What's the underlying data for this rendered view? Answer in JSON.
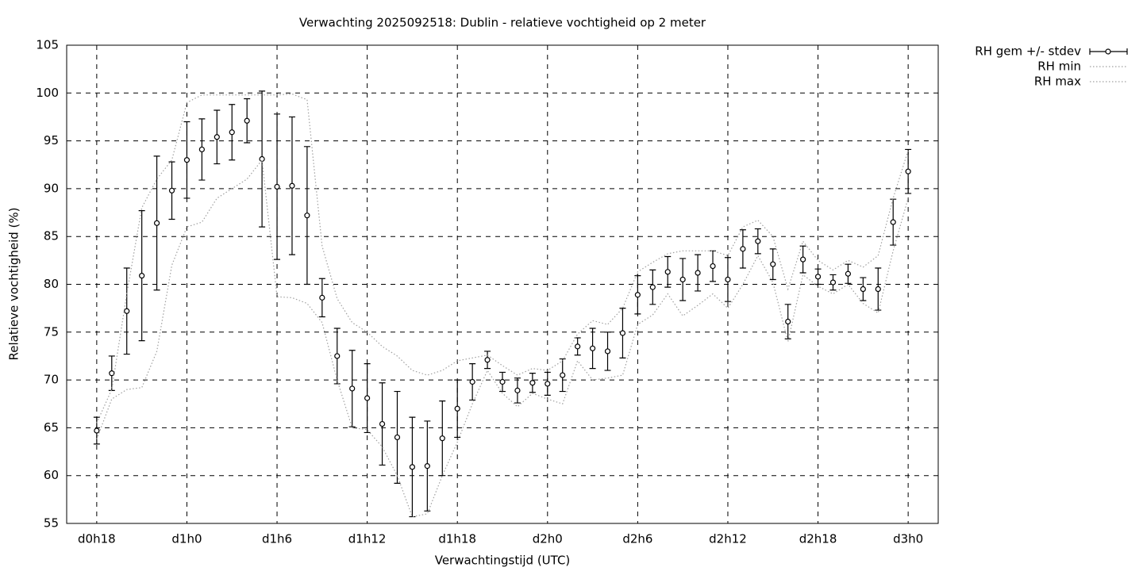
{
  "chart_data": {
    "type": "errorbar-line",
    "title": "Verwachting 2025092518: Dublin - relatieve vochtigheid op 2 meter",
    "xlabel": "Verwachtingstijd (UTC)",
    "ylabel": "Relatieve vochtigheid (%)",
    "x": [
      18,
      19,
      20,
      21,
      22,
      23,
      24,
      25,
      26,
      27,
      28,
      29,
      30,
      31,
      32,
      33,
      34,
      35,
      36,
      37,
      38,
      39,
      40,
      41,
      42,
      43,
      44,
      45,
      46,
      47,
      48,
      49,
      50,
      51,
      52,
      53,
      54,
      55,
      56,
      57,
      58,
      59,
      60,
      61,
      62,
      63,
      64,
      65,
      66,
      67,
      68,
      69,
      70,
      71,
      72
    ],
    "xlim": [
      16,
      74
    ],
    "xticks": [
      {
        "value": 18,
        "label": "d0h18"
      },
      {
        "value": 24,
        "label": "d1h0"
      },
      {
        "value": 30,
        "label": "d1h6"
      },
      {
        "value": 36,
        "label": "d1h12"
      },
      {
        "value": 42,
        "label": "d1h18"
      },
      {
        "value": 48,
        "label": "d2h0"
      },
      {
        "value": 54,
        "label": "d2h6"
      },
      {
        "value": 60,
        "label": "d2h12"
      },
      {
        "value": 66,
        "label": "d2h18"
      },
      {
        "value": 72,
        "label": "d3h0"
      }
    ],
    "ylim": [
      55,
      105
    ],
    "yticks": [
      55,
      60,
      65,
      70,
      75,
      80,
      85,
      90,
      95,
      100,
      105
    ],
    "grid": true,
    "legend": "outside-top-right",
    "series": [
      {
        "name": "RH gem +/- stdev",
        "color": "#000000",
        "style": "errorbar",
        "values": [
          64.7,
          70.7,
          77.2,
          80.9,
          86.4,
          89.8,
          93.0,
          94.1,
          95.4,
          95.9,
          97.1,
          93.1,
          90.2,
          90.3,
          87.2,
          78.6,
          72.5,
          69.1,
          68.1,
          65.4,
          64.0,
          60.9,
          61.0,
          63.9,
          67.0,
          69.8,
          72.1,
          69.8,
          68.9,
          69.7,
          69.6,
          70.5,
          73.5,
          73.3,
          73.0,
          74.9,
          78.9,
          79.7,
          81.3,
          80.5,
          81.2,
          81.9,
          80.5,
          83.7,
          84.5,
          82.1,
          76.1,
          82.6,
          80.8,
          80.2,
          81.1,
          79.5,
          79.5,
          86.5,
          91.8
        ],
        "errors": [
          1.4,
          1.8,
          4.5,
          6.8,
          7.0,
          3.0,
          4.0,
          3.2,
          2.8,
          2.9,
          2.3,
          7.1,
          7.6,
          7.2,
          7.2,
          2.0,
          2.9,
          4.0,
          3.6,
          4.3,
          4.8,
          5.2,
          4.7,
          3.9,
          3.0,
          1.9,
          0.9,
          1.0,
          1.3,
          1.0,
          1.2,
          1.7,
          0.9,
          2.1,
          2.0,
          2.6,
          2.0,
          1.8,
          1.6,
          2.2,
          1.9,
          1.6,
          2.3,
          2.0,
          1.3,
          1.6,
          1.8,
          1.4,
          0.8,
          0.8,
          1.0,
          1.2,
          2.2,
          2.4,
          2.3
        ]
      },
      {
        "name": "RH min",
        "color": "#a0a0a0",
        "style": "dotted",
        "values": [
          63.8,
          68,
          69,
          69.2,
          73,
          82,
          86,
          86.5,
          89,
          90,
          91,
          93,
          78.7,
          78.6,
          78,
          76,
          70,
          65,
          64.8,
          63,
          60,
          55.7,
          56,
          60,
          63.5,
          67.5,
          71,
          68.6,
          67.2,
          68.6,
          68,
          67.5,
          72,
          70,
          70.2,
          70.5,
          75.8,
          76.8,
          79,
          76.7,
          77.8,
          79,
          77.5,
          80,
          83,
          80.2,
          74,
          81,
          79.8,
          79,
          80,
          78,
          77,
          83.5,
          89
        ]
      },
      {
        "name": "RH max",
        "color": "#a0a0a0",
        "style": "dotted",
        "values": [
          65.5,
          69,
          79,
          88,
          91,
          93,
          99,
          99.8,
          99.8,
          99.8,
          99.8,
          99.8,
          99.8,
          99.9,
          99.3,
          84,
          78.5,
          76,
          75,
          73.5,
          72.5,
          71,
          70.5,
          71,
          72,
          72.3,
          72.6,
          71.5,
          70.5,
          71.2,
          71,
          72,
          74.8,
          76.2,
          75.8,
          77.5,
          81.3,
          82.3,
          83.2,
          83.5,
          83.5,
          83.5,
          83,
          86,
          86.7,
          85,
          79.5,
          84.5,
          82.5,
          81.5,
          82.5,
          81.8,
          83,
          89,
          94
        ]
      }
    ]
  }
}
